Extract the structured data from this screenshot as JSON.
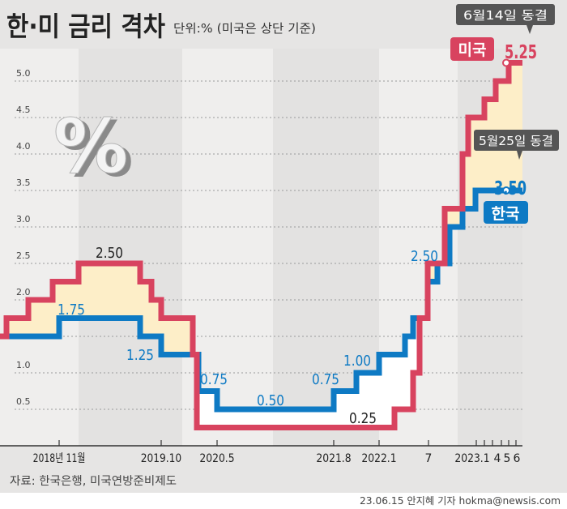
{
  "header": {
    "title": "한·미 금리 격차",
    "subtitle": "단위:% (미국은 상단 기준)"
  },
  "icon": {
    "name": "percent-3d-icon",
    "glyph": "%"
  },
  "footer": {
    "source": "자료: 한국은행, 미국연방준비제도",
    "credit": "23.06.15 안지혜 기자 hokma@newsis.com"
  },
  "colors": {
    "us": "#d8435f",
    "korea": "#0e7ac4",
    "gap_fill": "#fdeec8",
    "reverse_fill": "#ffffff",
    "callout": "#555555",
    "background": "#e6e5e4"
  },
  "chart_data": {
    "type": "line",
    "step": true,
    "title": "한·미 금리 격차",
    "ylabel": "",
    "unit": "%",
    "ylim": [
      0,
      5.25
    ],
    "grid": true,
    "yticks": [
      "0.5",
      "1.0",
      "1.5",
      "2.0",
      "2.5",
      "3.0",
      "3.5",
      "4.0",
      "4.5",
      "5.0"
    ],
    "xticks": [
      {
        "date": "2018-11",
        "label": "2018년 11월"
      },
      {
        "date": "2019-10",
        "label": "2019.10"
      },
      {
        "date": "2020-05",
        "label": "2020.5"
      },
      {
        "date": "2021-08",
        "label": "2021.8"
      },
      {
        "date": "2022-01",
        "label": "2022.1"
      },
      {
        "date": "2022-07",
        "label": "7"
      },
      {
        "date": "2023-01",
        "label": "2023.1"
      },
      {
        "date": "2023-02",
        "label": ""
      },
      {
        "date": "2023-03",
        "label": ""
      },
      {
        "date": "2023-04",
        "label": "4"
      },
      {
        "date": "2023-05",
        "label": "5"
      },
      {
        "date": "2023-06",
        "label": "6"
      }
    ],
    "series": [
      {
        "name": "미국",
        "key": "us",
        "steps": [
          [
            "2017-12",
            1.5
          ],
          [
            "2018-03",
            1.75
          ],
          [
            "2018-06",
            2.0
          ],
          [
            "2018-09",
            2.25
          ],
          [
            "2018-12",
            2.5
          ],
          [
            "2019-07",
            2.25
          ],
          [
            "2019-09",
            2.0
          ],
          [
            "2019-10",
            1.75
          ],
          [
            "2020-03-03",
            1.25
          ],
          [
            "2020-03-15",
            0.25
          ],
          [
            "2022-03",
            0.5
          ],
          [
            "2022-05",
            1.0
          ],
          [
            "2022-06",
            1.75
          ],
          [
            "2022-07",
            2.5
          ],
          [
            "2022-09",
            3.25
          ],
          [
            "2022-11",
            4.0
          ],
          [
            "2022-12",
            4.5
          ],
          [
            "2023-02",
            4.75
          ],
          [
            "2023-03",
            5.0
          ],
          [
            "2023-05",
            5.25
          ],
          [
            "2023-06",
            5.25
          ]
        ]
      },
      {
        "name": "한국",
        "key": "korea",
        "steps": [
          [
            "2017-12",
            1.5
          ],
          [
            "2018-11",
            1.75
          ],
          [
            "2019-07",
            1.5
          ],
          [
            "2019-10",
            1.25
          ],
          [
            "2020-03",
            0.75
          ],
          [
            "2020-05",
            0.5
          ],
          [
            "2021-08",
            0.75
          ],
          [
            "2021-11",
            1.0
          ],
          [
            "2022-01",
            1.25
          ],
          [
            "2022-04",
            1.5
          ],
          [
            "2022-05",
            1.75
          ],
          [
            "2022-07",
            2.25
          ],
          [
            "2022-08",
            2.5
          ],
          [
            "2022-10",
            3.0
          ],
          [
            "2022-11",
            3.25
          ],
          [
            "2023-01",
            3.5
          ],
          [
            "2023-06",
            3.5
          ]
        ]
      }
    ],
    "data_labels": [
      {
        "id": "us-250",
        "text": "2.50",
        "series": "us"
      },
      {
        "id": "kr-175",
        "text": "1.75",
        "series": "korea"
      },
      {
        "id": "kr-125",
        "text": "1.25",
        "series": "korea"
      },
      {
        "id": "kr-075a",
        "text": "0.75",
        "series": "korea"
      },
      {
        "id": "kr-050",
        "text": "0.50",
        "series": "korea"
      },
      {
        "id": "kr-075b",
        "text": "0.75",
        "series": "korea"
      },
      {
        "id": "kr-100",
        "text": "1.00",
        "series": "korea"
      },
      {
        "id": "us-025",
        "text": "0.25",
        "series": "us"
      },
      {
        "id": "kr-250",
        "text": "2.50",
        "series": "korea"
      },
      {
        "id": "kr-350",
        "text": "3.50",
        "series": "korea"
      },
      {
        "id": "us-525",
        "text": "5.25",
        "series": "us"
      }
    ],
    "annotations": {
      "us_badge": "미국",
      "korea_badge": "한국",
      "us_callout": "6월14일 동결",
      "korea_callout": "5월25일 동결"
    }
  }
}
